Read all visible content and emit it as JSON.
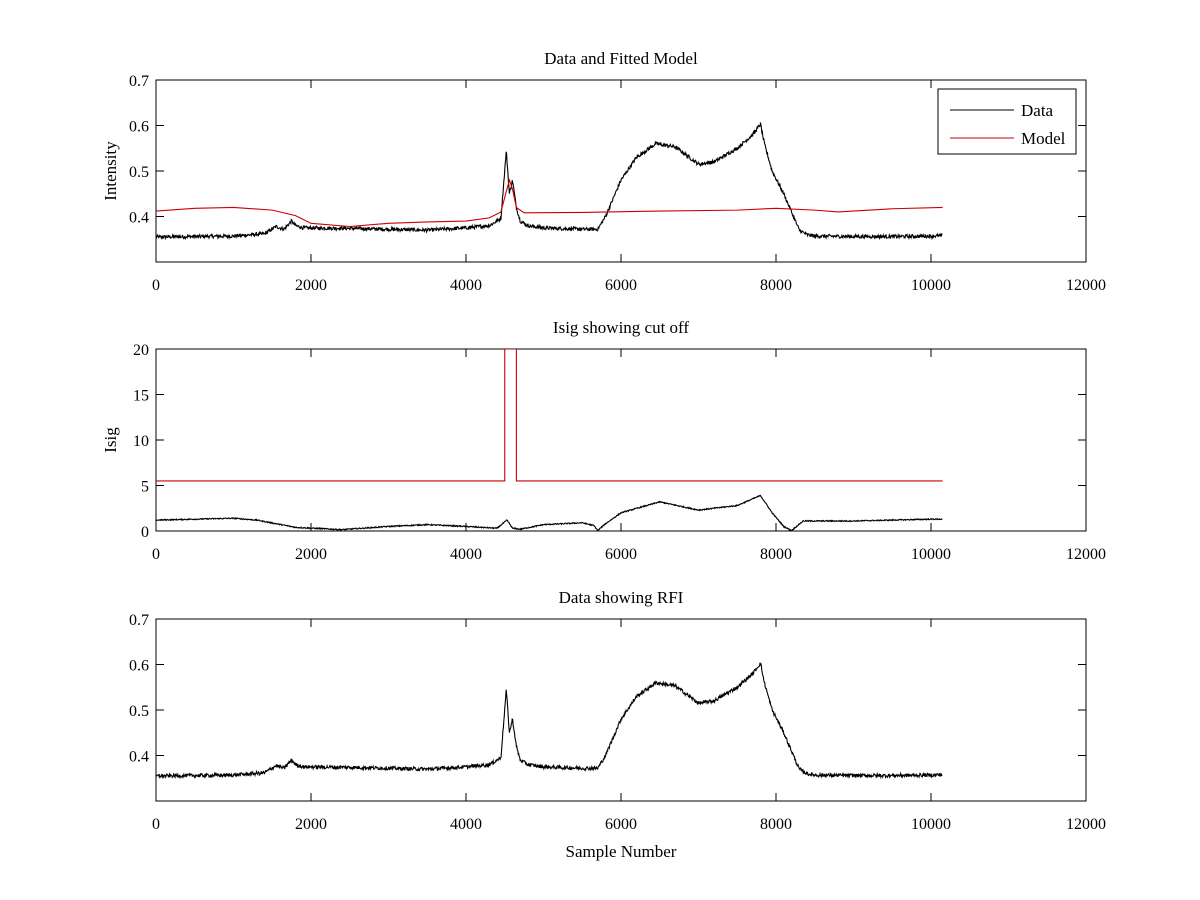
{
  "chart_data": [
    {
      "type": "line",
      "title": "Data and Fitted Model",
      "xlabel": "",
      "ylabel": "Intensity",
      "xlim": [
        0,
        12000
      ],
      "ylim": [
        0.3,
        0.7
      ],
      "xticks": [
        0,
        2000,
        4000,
        6000,
        8000,
        10000,
        12000
      ],
      "yticks": [
        0.4,
        0.5,
        0.6,
        0.7
      ],
      "grid": false,
      "legend": {
        "placement": "top-right",
        "entries": [
          "Data",
          "Model"
        ]
      },
      "series": [
        {
          "name": "Data",
          "color": "#000000",
          "noise": 0.004,
          "x": [
            0,
            500,
            1000,
            1400,
            1550,
            1650,
            1750,
            1800,
            1900,
            2500,
            3000,
            3500,
            4000,
            4300,
            4450,
            4520,
            4560,
            4600,
            4650,
            4700,
            4800,
            5000,
            5500,
            5700,
            5800,
            6000,
            6200,
            6450,
            6700,
            7000,
            7200,
            7500,
            7700,
            7800,
            7850,
            7950,
            8100,
            8300,
            8400,
            8500,
            9000,
            9500,
            10000,
            10150
          ],
          "y": [
            0.355,
            0.356,
            0.357,
            0.362,
            0.378,
            0.372,
            0.39,
            0.38,
            0.375,
            0.374,
            0.372,
            0.37,
            0.375,
            0.38,
            0.395,
            0.545,
            0.45,
            0.48,
            0.42,
            0.39,
            0.38,
            0.375,
            0.372,
            0.372,
            0.4,
            0.48,
            0.53,
            0.56,
            0.553,
            0.515,
            0.52,
            0.55,
            0.58,
            0.603,
            0.56,
            0.5,
            0.45,
            0.37,
            0.36,
            0.357,
            0.356,
            0.356,
            0.357,
            0.358
          ]
        },
        {
          "name": "Model",
          "color": "#cc0000",
          "noise": 0,
          "x": [
            0,
            500,
            1000,
            1500,
            1800,
            2000,
            2500,
            3000,
            3500,
            4000,
            4300,
            4450,
            4520,
            4560,
            4600,
            4650,
            4750,
            5500,
            6500,
            7500,
            8000,
            8500,
            8800,
            9500,
            10150
          ],
          "y": [
            0.412,
            0.418,
            0.42,
            0.414,
            0.402,
            0.385,
            0.378,
            0.385,
            0.388,
            0.39,
            0.397,
            0.41,
            0.455,
            0.48,
            0.46,
            0.42,
            0.408,
            0.409,
            0.412,
            0.414,
            0.418,
            0.414,
            0.41,
            0.417,
            0.42
          ]
        }
      ]
    },
    {
      "type": "line",
      "title": "Isig showing cut off",
      "xlabel": "",
      "ylabel": "Isig",
      "xlim": [
        0,
        12000
      ],
      "ylim": [
        0,
        20
      ],
      "xticks": [
        0,
        2000,
        4000,
        6000,
        8000,
        10000,
        12000
      ],
      "yticks": [
        0,
        5,
        10,
        15,
        20
      ],
      "grid": false,
      "series": [
        {
          "name": "Isig",
          "color": "#000000",
          "noise": 0.06,
          "x": [
            0,
            1000,
            1300,
            1800,
            2400,
            3000,
            3500,
            4000,
            4400,
            4530,
            4600,
            4700,
            5000,
            5500,
            5650,
            5700,
            5800,
            6000,
            6500,
            7000,
            7500,
            7800,
            7950,
            8100,
            8200,
            8350,
            9000,
            10000,
            10150
          ],
          "y": [
            1.2,
            1.4,
            1.2,
            0.4,
            0.15,
            0.5,
            0.7,
            0.5,
            0.3,
            1.2,
            0.3,
            0.2,
            0.7,
            0.9,
            0.6,
            0.05,
            0.8,
            2.0,
            3.2,
            2.3,
            2.8,
            3.9,
            2.0,
            0.5,
            0.05,
            1.1,
            1.1,
            1.3,
            1.3
          ]
        },
        {
          "name": "Cut off",
          "color": "#cc0000",
          "noise": 0,
          "x": [
            0,
            4500,
            4500,
            4650,
            4650,
            10150
          ],
          "y": [
            5.5,
            5.5,
            20,
            20,
            5.5,
            5.5
          ]
        }
      ]
    },
    {
      "type": "line",
      "title": "Data showing RFI",
      "xlabel": "Sample Number",
      "ylabel": "",
      "xlim": [
        0,
        12000
      ],
      "ylim": [
        0.3,
        0.7
      ],
      "xticks": [
        0,
        2000,
        4000,
        6000,
        8000,
        10000,
        12000
      ],
      "yticks": [
        0.4,
        0.5,
        0.6,
        0.7
      ],
      "grid": false,
      "series": [
        {
          "name": "Data",
          "color": "#000000",
          "noise": 0.004,
          "x": [
            0,
            500,
            1000,
            1400,
            1550,
            1650,
            1750,
            1800,
            1900,
            2500,
            3000,
            3500,
            4000,
            4300,
            4450,
            4520,
            4560,
            4600,
            4650,
            4700,
            4800,
            5000,
            5500,
            5700,
            5800,
            6000,
            6200,
            6450,
            6700,
            7000,
            7200,
            7500,
            7700,
            7800,
            7850,
            7950,
            8100,
            8300,
            8400,
            8500,
            9000,
            9500,
            10000,
            10150
          ],
          "y": [
            0.355,
            0.356,
            0.357,
            0.362,
            0.378,
            0.372,
            0.39,
            0.38,
            0.375,
            0.374,
            0.372,
            0.37,
            0.375,
            0.38,
            0.395,
            0.545,
            0.45,
            0.48,
            0.42,
            0.39,
            0.38,
            0.375,
            0.372,
            0.372,
            0.4,
            0.48,
            0.53,
            0.56,
            0.553,
            0.515,
            0.52,
            0.55,
            0.58,
            0.603,
            0.56,
            0.5,
            0.45,
            0.37,
            0.36,
            0.357,
            0.356,
            0.356,
            0.357,
            0.358
          ]
        }
      ]
    }
  ]
}
